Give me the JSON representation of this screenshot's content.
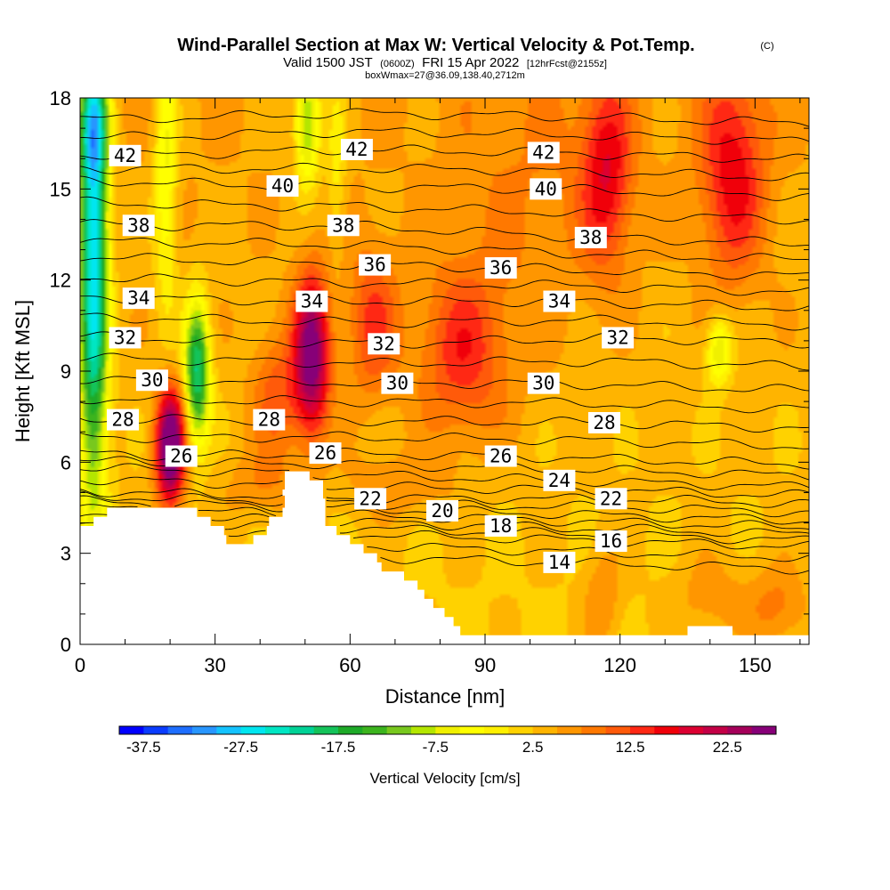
{
  "title": {
    "main": "Wind-Parallel Section at Max W: Vertical Velocity & Pot.Temp.",
    "copyright": "(C)",
    "valid_prefix": "Valid 1500 JST",
    "valid_utc": "(0600Z)",
    "valid_date": "FRI 15 Apr 2022",
    "forecast": "[12hrFcst@2155z]",
    "box_info": "boxWmax=27@36.09,138.40,2712m"
  },
  "chart_data": {
    "type": "heatmap",
    "xlabel": "Distance [nm]",
    "ylabel": "Height [Kft MSL]",
    "xlim": [
      0,
      162
    ],
    "ylim": [
      0,
      18
    ],
    "x_ticks": [
      0,
      30,
      60,
      90,
      120,
      150
    ],
    "y_ticks": [
      0,
      3,
      6,
      9,
      12,
      15,
      18
    ],
    "colorbar": {
      "title": "Vertical Velocity [cm/s]",
      "min": -40,
      "max": 27.5,
      "step": 2.5,
      "labels": [
        -37.5,
        -27.5,
        -17.5,
        -7.5,
        2.5,
        12.5,
        22.5
      ],
      "colors": [
        "#0000ff",
        "#0a3cff",
        "#1e6eff",
        "#2896ff",
        "#14c3ff",
        "#00e6f0",
        "#00e6c3",
        "#00d296",
        "#14c35a",
        "#1eaa28",
        "#3cb41e",
        "#78c81e",
        "#b4e600",
        "#f0f000",
        "#ffff00",
        "#fff000",
        "#ffd200",
        "#ffb400",
        "#ff9600",
        "#ff7800",
        "#ff5a0a",
        "#ff2814",
        "#f0000a",
        "#dc0032",
        "#c30046",
        "#a5005a",
        "#870078"
      ]
    },
    "theta_contour_labels": [
      {
        "x": 10,
        "y": 16.1,
        "value": "42"
      },
      {
        "x": 61.5,
        "y": 16.3,
        "value": "42"
      },
      {
        "x": 103,
        "y": 16.2,
        "value": "42"
      },
      {
        "x": 45,
        "y": 15.1,
        "value": "40"
      },
      {
        "x": 103.5,
        "y": 15.0,
        "value": "40"
      },
      {
        "x": 13,
        "y": 13.8,
        "value": "38"
      },
      {
        "x": 58.5,
        "y": 13.8,
        "value": "38"
      },
      {
        "x": 113.5,
        "y": 13.4,
        "value": "38"
      },
      {
        "x": 65.5,
        "y": 12.5,
        "value": "36"
      },
      {
        "x": 93.5,
        "y": 12.4,
        "value": "36"
      },
      {
        "x": 13,
        "y": 11.4,
        "value": "34"
      },
      {
        "x": 51.5,
        "y": 11.3,
        "value": "34"
      },
      {
        "x": 106.5,
        "y": 11.3,
        "value": "34"
      },
      {
        "x": 10,
        "y": 10.1,
        "value": "32"
      },
      {
        "x": 67.5,
        "y": 9.9,
        "value": "32"
      },
      {
        "x": 119.5,
        "y": 10.1,
        "value": "32"
      },
      {
        "x": 16,
        "y": 8.7,
        "value": "30"
      },
      {
        "x": 70.5,
        "y": 8.6,
        "value": "30"
      },
      {
        "x": 103,
        "y": 8.6,
        "value": "30"
      },
      {
        "x": 9.5,
        "y": 7.4,
        "value": "28"
      },
      {
        "x": 42,
        "y": 7.4,
        "value": "28"
      },
      {
        "x": 116.5,
        "y": 7.3,
        "value": "28"
      },
      {
        "x": 22.5,
        "y": 6.2,
        "value": "26"
      },
      {
        "x": 54.5,
        "y": 6.3,
        "value": "26"
      },
      {
        "x": 93.5,
        "y": 6.2,
        "value": "26"
      },
      {
        "x": 106.5,
        "y": 5.4,
        "value": "24"
      },
      {
        "x": 64.5,
        "y": 4.8,
        "value": "22"
      },
      {
        "x": 118,
        "y": 4.8,
        "value": "22"
      },
      {
        "x": 80.5,
        "y": 4.4,
        "value": "20"
      },
      {
        "x": 93.5,
        "y": 3.9,
        "value": "18"
      },
      {
        "x": 118,
        "y": 3.4,
        "value": "16"
      },
      {
        "x": 106.5,
        "y": 2.7,
        "value": "14"
      }
    ],
    "terrain_profile": [
      [
        0,
        3.9
      ],
      [
        3,
        3.9
      ],
      [
        3,
        4.2
      ],
      [
        6,
        4.2
      ],
      [
        6,
        4.5
      ],
      [
        26,
        4.5
      ],
      [
        26,
        4.2
      ],
      [
        29,
        4.2
      ],
      [
        29,
        3.9
      ],
      [
        32,
        3.9
      ],
      [
        32,
        3.6
      ],
      [
        32.5,
        3.6
      ],
      [
        32.5,
        3.3
      ],
      [
        38.5,
        3.3
      ],
      [
        38.5,
        3.6
      ],
      [
        41.5,
        3.6
      ],
      [
        41.5,
        3.9
      ],
      [
        42,
        3.9
      ],
      [
        42,
        4.2
      ],
      [
        45,
        4.2
      ],
      [
        45,
        4.5
      ],
      [
        45.5,
        4.5
      ],
      [
        45.5,
        4.8
      ],
      [
        45.5,
        4.9
      ],
      [
        45,
        4.9
      ],
      [
        45,
        5.1
      ],
      [
        45.5,
        5.1
      ],
      [
        45.5,
        5.7
      ],
      [
        51,
        5.7
      ],
      [
        51,
        5.4
      ],
      [
        54,
        5.4
      ],
      [
        54,
        4.8
      ],
      [
        54.5,
        4.8
      ],
      [
        54.5,
        4.2
      ],
      [
        54.5,
        3.9
      ],
      [
        57,
        3.9
      ],
      [
        57,
        3.6
      ],
      [
        60,
        3.6
      ],
      [
        60,
        3.3
      ],
      [
        63,
        3.3
      ],
      [
        63,
        3.0
      ],
      [
        66,
        3.0
      ],
      [
        66,
        2.7
      ],
      [
        67,
        2.7
      ],
      [
        67,
        2.4
      ],
      [
        72,
        2.4
      ],
      [
        72,
        2.1
      ],
      [
        75,
        2.1
      ],
      [
        75,
        1.8
      ],
      [
        76.5,
        1.8
      ],
      [
        76.5,
        1.5
      ],
      [
        78.5,
        1.5
      ],
      [
        78.5,
        1.2
      ],
      [
        81,
        1.2
      ],
      [
        81,
        0.9
      ],
      [
        83,
        0.9
      ],
      [
        83,
        0.6
      ],
      [
        84.5,
        0.6
      ],
      [
        84.5,
        0.3
      ],
      [
        135,
        0.3
      ],
      [
        135,
        0.6
      ],
      [
        145,
        0.6
      ],
      [
        145,
        0.3
      ],
      [
        162,
        0.3
      ]
    ],
    "w_features": [
      {
        "x": 3,
        "y": 13,
        "sx": 2.2,
        "sy": 5.5,
        "w": -32
      },
      {
        "x": 3,
        "y": 17,
        "sx": 2.5,
        "sy": 1.2,
        "w": -12
      },
      {
        "x": 19,
        "y": 16,
        "sx": 1.8,
        "sy": 3.5,
        "w": -10
      },
      {
        "x": 26,
        "y": 9,
        "sx": 1.9,
        "sy": 1.6,
        "w": -24
      },
      {
        "x": 50.5,
        "y": 17.2,
        "sx": 2.0,
        "sy": 1.4,
        "w": -16
      },
      {
        "x": 57,
        "y": 16,
        "sx": 1.5,
        "sy": 2,
        "w": -6
      },
      {
        "x": 20,
        "y": 6.5,
        "sx": 2.2,
        "sy": 1.3,
        "w": 30
      },
      {
        "x": 51.5,
        "y": 9.5,
        "sx": 2.7,
        "sy": 1.8,
        "w": 24
      },
      {
        "x": 44,
        "y": 8.2,
        "sx": 4,
        "sy": 1.5,
        "w": 8
      },
      {
        "x": 65,
        "y": 10.5,
        "sx": 4,
        "sy": 1.8,
        "w": 9
      },
      {
        "x": 85,
        "y": 9.5,
        "sx": 7,
        "sy": 2,
        "w": 10
      },
      {
        "x": 117,
        "y": 15.5,
        "sx": 4,
        "sy": 2.2,
        "w": 12
      },
      {
        "x": 145,
        "y": 15.5,
        "sx": 5,
        "sy": 2.5,
        "w": 12
      },
      {
        "x": 142,
        "y": 9.7,
        "sx": 2,
        "sy": 0.8,
        "w": -12
      },
      {
        "x": 116,
        "y": 1.5,
        "sx": 3,
        "sy": 1.2,
        "w": 5
      },
      {
        "x": 140,
        "y": 1.5,
        "sx": 6,
        "sy": 1,
        "w": 4
      },
      {
        "x": 155,
        "y": 1.2,
        "sx": 5,
        "sy": 1,
        "w": 6
      },
      {
        "x": 100,
        "y": 14.5,
        "sx": 12,
        "sy": 3.5,
        "w": 3
      },
      {
        "x": 70,
        "y": 5.2,
        "sx": 8,
        "sy": 0.8,
        "w": 4
      },
      {
        "x": 40,
        "y": 5.2,
        "sx": 6,
        "sy": 0.8,
        "w": 4
      }
    ]
  }
}
